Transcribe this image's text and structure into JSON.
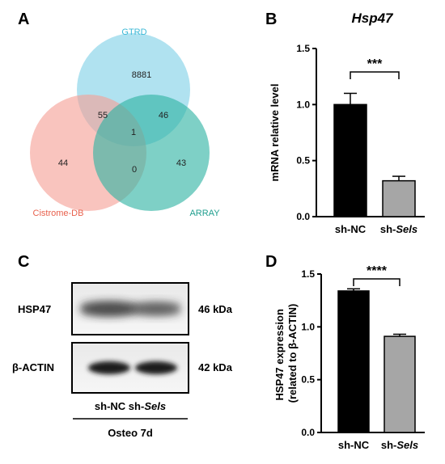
{
  "panels": {
    "A": {
      "letter": "A",
      "sets": [
        {
          "name": "GTRD",
          "color": "#7fd0e6",
          "label_color": "#3bb8d6"
        },
        {
          "name": "Cistrome-DB",
          "color": "#f5a096",
          "label_color": "#e8604c"
        },
        {
          "name": "ARRAY",
          "color": "#2fb3a3",
          "label_color": "#1f9e8e"
        }
      ],
      "regions": {
        "gtrd_only": "8881",
        "gtrd_cistrome": "55",
        "gtrd_array": "46",
        "all_three": "1",
        "cistrome_only": "44",
        "cistrome_array": "0",
        "array_only": "43"
      }
    },
    "B": {
      "letter": "B",
      "gene": "Hsp47",
      "significance": "***"
    },
    "C": {
      "letter": "C",
      "bands": [
        {
          "protein": "HSP47",
          "size": "46 kDa"
        },
        {
          "protein": "β-ACTIN",
          "size": "42 kDa"
        }
      ],
      "lanes_prefix": "sh-NC sh-",
      "lanes_italic": "Sels",
      "condition": "Osteo 7d"
    },
    "D": {
      "letter": "D",
      "significance": "****"
    }
  },
  "chart_data": [
    {
      "type": "bar",
      "panel": "B",
      "title": "Hsp47",
      "ylabel": "mRNA relative level",
      "xlabel": "",
      "categories": [
        {
          "prefix": "sh-NC",
          "italic": ""
        },
        {
          "prefix": "sh-",
          "italic": "Sels"
        }
      ],
      "values": [
        1.0,
        0.32
      ],
      "errors": [
        0.1,
        0.04
      ],
      "bar_colors": [
        "#000000",
        "#a6a6a6"
      ],
      "ylim": [
        0,
        1.5
      ],
      "yticks": [
        "0.0",
        "0.5",
        "1.0",
        "1.5"
      ],
      "significance": "***"
    },
    {
      "type": "bar",
      "panel": "D",
      "title": "",
      "ylabel_lines": [
        "HSP47 expression",
        "(related to β-ACTIN)"
      ],
      "xlabel": "",
      "categories": [
        {
          "prefix": "sh-NC",
          "italic": ""
        },
        {
          "prefix": "sh-",
          "italic": "Sels"
        }
      ],
      "values": [
        1.34,
        0.91
      ],
      "errors": [
        0.02,
        0.02
      ],
      "bar_colors": [
        "#000000",
        "#a6a6a6"
      ],
      "ylim": [
        0,
        1.5
      ],
      "yticks": [
        "0.0",
        "0.5",
        "1.0",
        "1.5"
      ],
      "significance": "****"
    }
  ]
}
